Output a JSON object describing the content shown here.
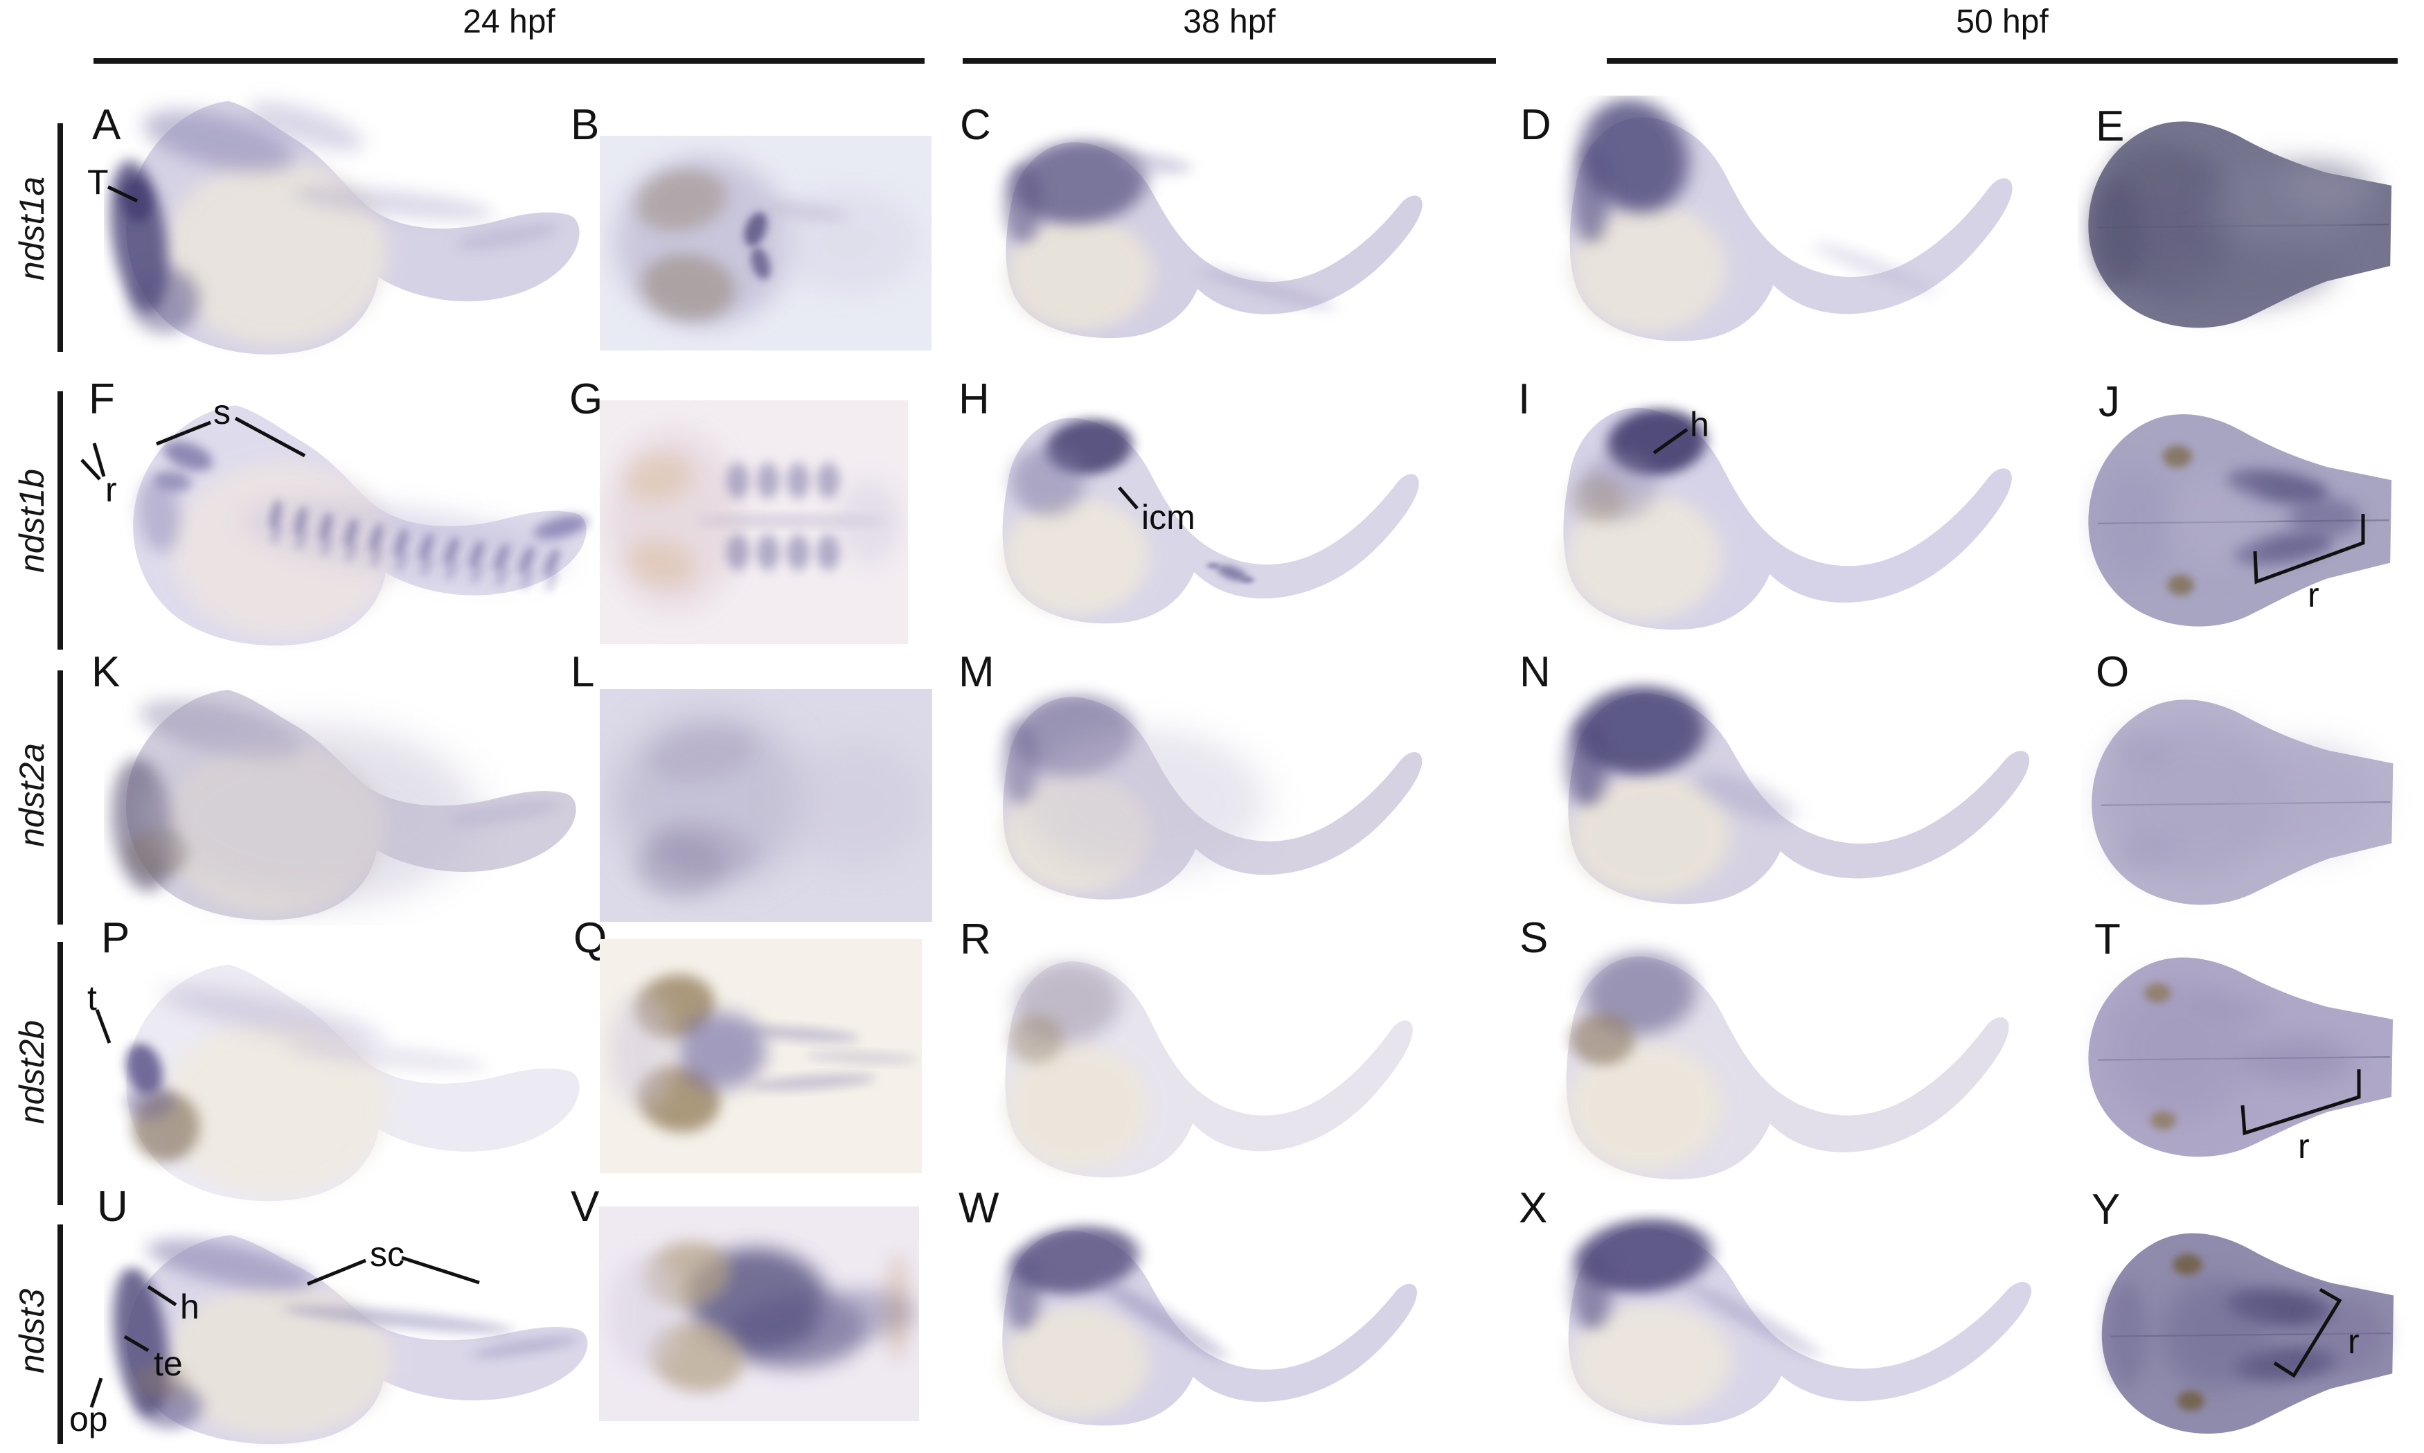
{
  "header": {
    "groups": [
      {
        "label": "24 hpf"
      },
      {
        "label": "38 hpf"
      },
      {
        "label": "50 hpf"
      }
    ]
  },
  "rows": [
    {
      "gene": "ndst1a",
      "panels": [
        {
          "letter": "A",
          "annotations": [
            {
              "text": "T"
            }
          ]
        },
        {
          "letter": "B",
          "annotations": []
        },
        {
          "letter": "C",
          "annotations": []
        },
        {
          "letter": "D",
          "annotations": []
        },
        {
          "letter": "E",
          "annotations": []
        }
      ]
    },
    {
      "gene": "ndst1b",
      "panels": [
        {
          "letter": "F",
          "annotations": [
            {
              "text": "s"
            },
            {
              "text": "r"
            }
          ]
        },
        {
          "letter": "G",
          "annotations": []
        },
        {
          "letter": "H",
          "annotations": [
            {
              "text": "icm"
            }
          ]
        },
        {
          "letter": "I",
          "annotations": [
            {
              "text": "h"
            }
          ]
        },
        {
          "letter": "J",
          "annotations": [
            {
              "text": "r"
            }
          ]
        }
      ]
    },
    {
      "gene": "ndst2a",
      "panels": [
        {
          "letter": "K",
          "annotations": []
        },
        {
          "letter": "L",
          "annotations": []
        },
        {
          "letter": "M",
          "annotations": []
        },
        {
          "letter": "N",
          "annotations": []
        },
        {
          "letter": "O",
          "annotations": []
        }
      ]
    },
    {
      "gene": "ndst2b",
      "panels": [
        {
          "letter": "P",
          "annotations": [
            {
              "text": "t"
            }
          ]
        },
        {
          "letter": "Q",
          "annotations": []
        },
        {
          "letter": "R",
          "annotations": []
        },
        {
          "letter": "S",
          "annotations": []
        },
        {
          "letter": "T",
          "annotations": [
            {
              "text": "r"
            }
          ]
        }
      ]
    },
    {
      "gene": "ndst3",
      "panels": [
        {
          "letter": "U",
          "annotations": [
            {
              "text": "h"
            },
            {
              "text": "te"
            },
            {
              "text": "op"
            },
            {
              "text": "sc"
            }
          ]
        },
        {
          "letter": "V",
          "annotations": []
        },
        {
          "letter": "W",
          "annotations": []
        },
        {
          "letter": "X",
          "annotations": []
        },
        {
          "letter": "Y",
          "annotations": [
            {
              "text": "r"
            }
          ]
        }
      ]
    }
  ],
  "palette": {
    "stain_purple": "#4f4a7a",
    "body_lavender": "#d7d3e6",
    "yolk_beige": "#eae4dd",
    "eye_brown": "#8a7a5e",
    "line_black": "#151515",
    "background": "#ffffff"
  }
}
